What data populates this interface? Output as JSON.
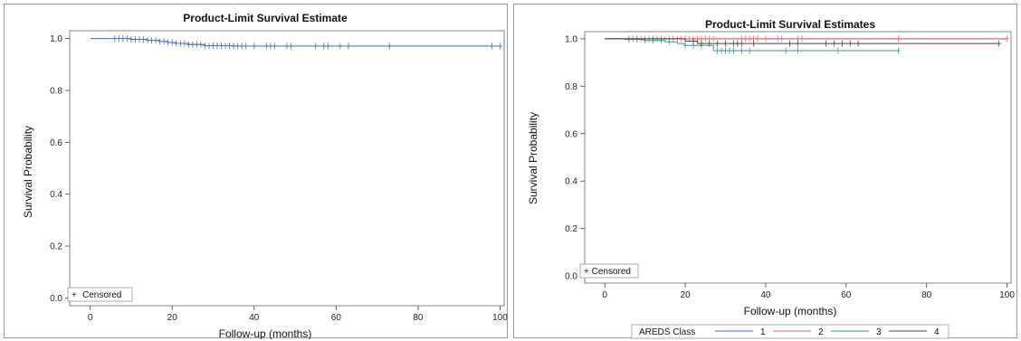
{
  "colors": {
    "series1": "#4d6ea8",
    "series2": "#d6716e",
    "series3": "#3a9a94",
    "series4": "#5a3d3d",
    "frame": "#666666",
    "tick": "#444444"
  },
  "chart_data": [
    {
      "type": "line",
      "title": "Product-Limit Survival Estimate",
      "xlabel": "Follow-up (months)",
      "ylabel": "Survival Probability",
      "xlim": [
        -5,
        101
      ],
      "ylim": [
        -0.03,
        1.03
      ],
      "xticks": [
        0,
        20,
        40,
        60,
        80,
        100
      ],
      "yticks": [
        0.0,
        0.2,
        0.4,
        0.6,
        0.8,
        1.0
      ],
      "legend": {
        "text": "Censored",
        "placement": "bottom-left"
      },
      "series": [
        {
          "color_key": "series1",
          "steps": [
            [
              0,
              1.0
            ],
            [
              10,
              0.997
            ],
            [
              14,
              0.993
            ],
            [
              17,
              0.989
            ],
            [
              19,
              0.985
            ],
            [
              21,
              0.981
            ],
            [
              24,
              0.977
            ],
            [
              28,
              0.972
            ],
            [
              35,
              0.971
            ],
            [
              100,
              0.971
            ]
          ],
          "censored": [
            6,
            7,
            8,
            9,
            10,
            11,
            12,
            13,
            14,
            15,
            16,
            17,
            18,
            19,
            20,
            21,
            22,
            23,
            24,
            25,
            26,
            27,
            28,
            29,
            30,
            31,
            32,
            33,
            34,
            35,
            36,
            37,
            38,
            40,
            43,
            44,
            45,
            48,
            49,
            55,
            57,
            58,
            61,
            63,
            73,
            98,
            100
          ]
        }
      ]
    },
    {
      "type": "line",
      "title": "Product-Limit Survival Estimates",
      "xlabel": "Follow-up (months)",
      "ylabel": "Survival Probability",
      "xlim": [
        -5,
        101
      ],
      "ylim": [
        -0.03,
        1.03
      ],
      "xticks": [
        0,
        20,
        40,
        60,
        80,
        100
      ],
      "yticks": [
        0.0,
        0.2,
        0.4,
        0.6,
        0.8,
        1.0
      ],
      "legend": {
        "text": "+ Censored",
        "placement": "bottom-left"
      },
      "class_legend": {
        "title": "AREDS Class",
        "labels": [
          "1",
          "2",
          "3",
          "4"
        ]
      },
      "series": [
        {
          "name": "1",
          "color_key": "series1",
          "steps": [
            [
              0,
              1.0
            ],
            [
              100,
              1.0
            ]
          ],
          "censored": []
        },
        {
          "name": "2",
          "color_key": "series2",
          "steps": [
            [
              0,
              1.0
            ],
            [
              100,
              1.0
            ]
          ],
          "censored": [
            6,
            7,
            8,
            9,
            10,
            11,
            12,
            13,
            14,
            15,
            16,
            17,
            18,
            19,
            20,
            21,
            22,
            23,
            24,
            25,
            26,
            27,
            34,
            35,
            36,
            37,
            38,
            40,
            43,
            44,
            48,
            49,
            73,
            100
          ]
        },
        {
          "name": "3",
          "color_key": "series3",
          "steps": [
            [
              0,
              1.0
            ],
            [
              5,
              0.997
            ],
            [
              10,
              0.993
            ],
            [
              15,
              0.987
            ],
            [
              18,
              0.98
            ],
            [
              20,
              0.972
            ],
            [
              27,
              0.95
            ],
            [
              73,
              0.95
            ]
          ],
          "censored": [
            6,
            8,
            10,
            12,
            14,
            16,
            20,
            22,
            24,
            28,
            29,
            30,
            31,
            32,
            34,
            36,
            45,
            48,
            58,
            73
          ]
        },
        {
          "name": "4",
          "color_key": "series4",
          "steps": [
            [
              0,
              1.0
            ],
            [
              3,
              1.0
            ],
            [
              20,
              0.99
            ],
            [
              23,
              0.98
            ],
            [
              98,
              0.98
            ]
          ],
          "censored": [
            22,
            24,
            26,
            28,
            30,
            32,
            33,
            34,
            37,
            46,
            48,
            55,
            57,
            59,
            61,
            63,
            98
          ]
        }
      ]
    }
  ]
}
